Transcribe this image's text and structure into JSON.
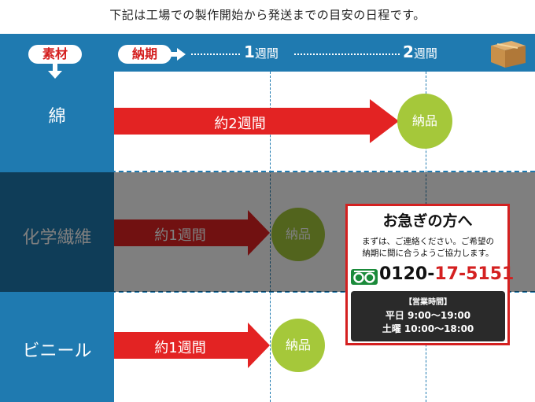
{
  "intro": "下記は工場での製作開始から発送までの目安の日程です。",
  "header": {
    "material_label": "素材",
    "deadline_label": "納期",
    "week1_num": "1",
    "week1_unit": "週間",
    "week2_num": "2",
    "week2_unit": "週間",
    "icon": "cardboard-box-icon"
  },
  "rows": [
    {
      "material": "綿",
      "duration": "約2週間",
      "delivery": "納品"
    },
    {
      "material": "化学繊維",
      "duration": "約1週間",
      "delivery": "納品"
    },
    {
      "material": "ビニール",
      "duration": "約1週間",
      "delivery": "納品"
    }
  ],
  "notice": {
    "title": "お急ぎの方へ",
    "body_line1": "まずは、ご連絡ください。ご希望の",
    "body_line2": "納期に間に合うようご協力します。",
    "phone_prefix": "0120-",
    "phone_rest": "17-5151",
    "phone_icon": "free-dial-icon",
    "hours_title": "【営業時間】",
    "hours_weekday": "平日 9:00～19:00",
    "hours_saturday": "土曜 10:00～18:00"
  },
  "colors": {
    "header_blue": "#1f7ab0",
    "arrow_red": "#e32323",
    "circle_green": "#a5c83a",
    "pill_red": "#d42020"
  }
}
